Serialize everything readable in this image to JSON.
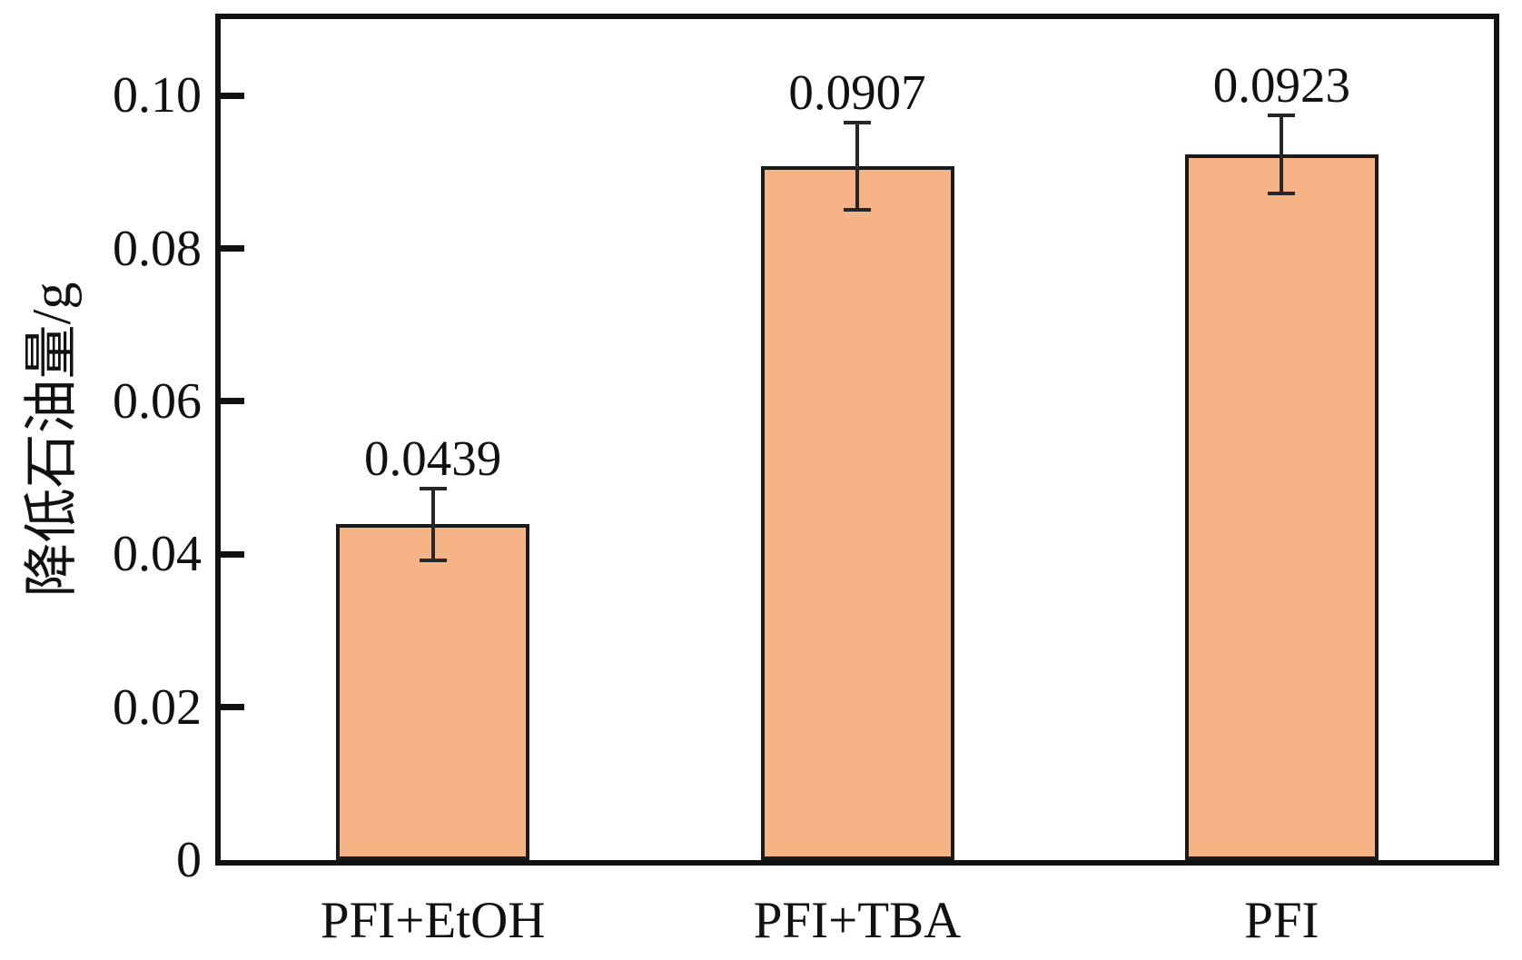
{
  "figure": {
    "background_color": "#ffffff",
    "frame_color": "#111111"
  },
  "chart_data": {
    "type": "bar",
    "title": "",
    "categories": [
      "PFI+EtOH",
      "PFI+TBA",
      "PFI"
    ],
    "values": [
      0.0439,
      0.0907,
      0.0923
    ],
    "value_labels": [
      "0.0439",
      "0.0907",
      "0.0923"
    ],
    "errors": [
      0.0047,
      0.0057,
      0.0051
    ],
    "xlabel": "",
    "ylabel": "降低石油量/g",
    "ylim": [
      0,
      0.11
    ],
    "yticks": [
      0,
      0.02,
      0.04,
      0.06,
      0.08,
      0.1
    ],
    "ytick_labels": [
      "0",
      "0.02",
      "0.04",
      "0.06",
      "0.08",
      "0.10"
    ],
    "grid": false,
    "legend": "none",
    "bar_fill_color": "#F6B385",
    "bar_edge_color": "#1a1a1a",
    "error_bar_color": "#262626",
    "axis_color": "#111111",
    "text_color": "#111111"
  }
}
